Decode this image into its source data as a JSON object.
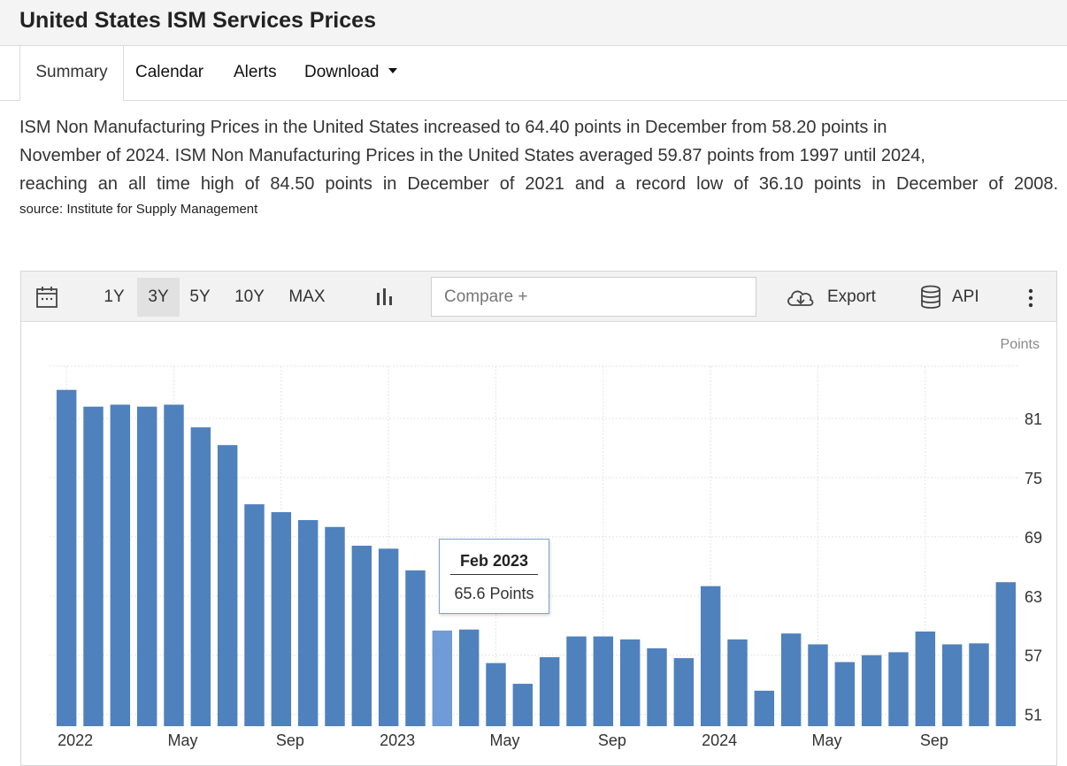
{
  "page": {
    "title": "United States ISM Services Prices"
  },
  "tabs": [
    {
      "label": "Summary",
      "active": true
    },
    {
      "label": "Calendar",
      "active": false
    },
    {
      "label": "Alerts",
      "active": false
    },
    {
      "label": "Download",
      "active": false
    }
  ],
  "description": {
    "line1": "ISM Non Manufacturing Prices in the United States increased to 64.40 points in December from 58.20 points in",
    "line2": "November of 2024. ISM Non Manufacturing Prices in the United States averaged 59.87 points from 1997 until 2024,",
    "line3": "reaching an all time high of 84.50 points in December of 2021 and a record low of 36.10 points in December of 2008.",
    "source": "source: Institute for Supply Management"
  },
  "toolbar": {
    "ranges": [
      "1Y",
      "3Y",
      "5Y",
      "10Y",
      "MAX"
    ],
    "active_range": "3Y",
    "compare_placeholder": "Compare +",
    "export_label": "Export",
    "api_label": "API",
    "calendar_icon": "calendar-icon",
    "chart_type_icon": "bar-chart-icon",
    "export_icon": "cloud-download-icon",
    "api_icon": "database-icon",
    "more_icon": "more-vertical-icon"
  },
  "tooltip": {
    "title": "Feb 2023",
    "value": "65.6 Points"
  },
  "colors": {
    "bar": "#4f81bd",
    "bar_highlight": "#6f9bd6",
    "grid": "#e3e3e3",
    "tooltip_border": "#7ea1cf"
  },
  "chart_data": {
    "type": "bar",
    "unit_label": "Points",
    "x_tick_labels": [
      "2022",
      "May",
      "Sep",
      "2023",
      "May",
      "Sep",
      "2024",
      "May",
      "Sep"
    ],
    "y_ticks": [
      51,
      57,
      63,
      69,
      75,
      81
    ],
    "ylim": [
      49.8,
      86.3
    ],
    "highlight_index": 14,
    "categories": [
      "Jan 2022",
      "Feb 2022",
      "Mar 2022",
      "Apr 2022",
      "May 2022",
      "Jun 2022",
      "Jul 2022",
      "Aug 2022",
      "Sep 2022",
      "Oct 2022",
      "Nov 2022",
      "Dec 2022",
      "Jan 2023",
      "Feb 2023",
      "Mar 2023",
      "Apr 2023",
      "May 2023",
      "Jun 2023",
      "Jul 2023",
      "Aug 2023",
      "Sep 2023",
      "Oct 2023",
      "Nov 2023",
      "Dec 2023",
      "Jan 2024",
      "Feb 2024",
      "Mar 2024",
      "Apr 2024",
      "May 2024",
      "Jun 2024",
      "Jul 2024",
      "Aug 2024",
      "Sep 2024",
      "Oct 2024",
      "Nov 2024",
      "Dec 2024"
    ],
    "series": [
      {
        "name": "ISM Services Prices",
        "values": [
          83.9,
          82.2,
          82.4,
          82.2,
          82.4,
          80.1,
          78.3,
          72.3,
          71.5,
          70.7,
          70.0,
          68.1,
          67.8,
          65.6,
          59.5,
          59.6,
          56.2,
          54.1,
          56.8,
          58.9,
          58.9,
          58.6,
          57.7,
          56.7,
          64.0,
          58.6,
          53.4,
          59.2,
          58.1,
          56.3,
          57.0,
          57.3,
          59.4,
          58.1,
          58.2,
          64.4
        ]
      }
    ]
  }
}
